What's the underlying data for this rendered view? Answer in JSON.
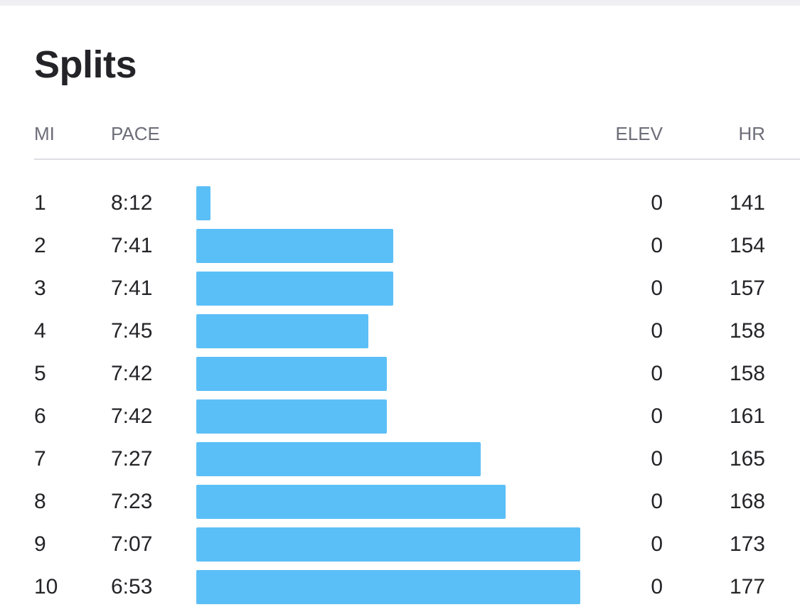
{
  "section": {
    "title": "Splits"
  },
  "columns": {
    "mi": "MI",
    "pace": "PACE",
    "elev": "ELEV",
    "hr": "HR"
  },
  "colors": {
    "bar": "#5bbff7",
    "header_text": "#6d6d78",
    "body_text": "#242428"
  },
  "splits": [
    {
      "mi": "1",
      "pace": "8:12",
      "elev": "0",
      "hr": "141",
      "pace_seconds": 492
    },
    {
      "mi": "2",
      "pace": "7:41",
      "elev": "0",
      "hr": "154",
      "pace_seconds": 461
    },
    {
      "mi": "3",
      "pace": "7:41",
      "elev": "0",
      "hr": "157",
      "pace_seconds": 461
    },
    {
      "mi": "4",
      "pace": "7:45",
      "elev": "0",
      "hr": "158",
      "pace_seconds": 465
    },
    {
      "mi": "5",
      "pace": "7:42",
      "elev": "0",
      "hr": "158",
      "pace_seconds": 462
    },
    {
      "mi": "6",
      "pace": "7:42",
      "elev": "0",
      "hr": "161",
      "pace_seconds": 462
    },
    {
      "mi": "7",
      "pace": "7:27",
      "elev": "0",
      "hr": "165",
      "pace_seconds": 447
    },
    {
      "mi": "8",
      "pace": "7:23",
      "elev": "0",
      "hr": "168",
      "pace_seconds": 443
    },
    {
      "mi": "9",
      "pace": "7:07",
      "elev": "0",
      "hr": "173",
      "pace_seconds": 427
    },
    {
      "mi": "10",
      "pace": "6:53",
      "elev": "0",
      "hr": "177",
      "pace_seconds": 413
    }
  ]
}
